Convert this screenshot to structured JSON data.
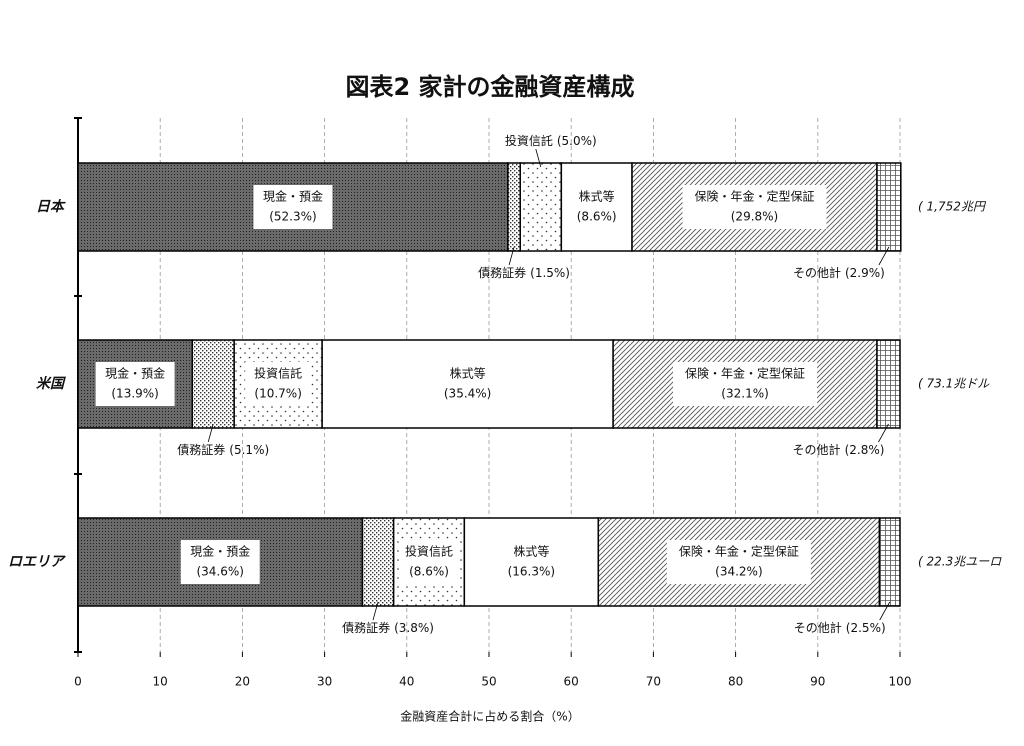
{
  "chart_data": {
    "type": "stacked-bar-horizontal",
    "title": "図表2 家計の金融資産構成",
    "x_label": "金融資産合計に占める割合（%）",
    "categories": [
      "日本",
      "米国",
      "ロエリア"
    ],
    "totals": [
      "( 1,752兆円",
      "( 73.1兆ドル",
      "( 22.3兆ユーロ"
    ],
    "xlim": [
      0,
      100
    ],
    "xticks": [
      0,
      10,
      20,
      30,
      40,
      50,
      60,
      70,
      80,
      90,
      100
    ],
    "grid": true,
    "series": [
      {
        "name": "現金・預金",
        "color": "#6a6a6a",
        "values": [
          52.3,
          13.9,
          34.6
        ],
        "value_labels": [
          "(52.3%)",
          "(13.9%)",
          "(34.6%)"
        ]
      },
      {
        "name": "債務証券",
        "color": "#dddddd",
        "values": [
          1.5,
          5.1,
          3.8
        ],
        "value_labels": [
          "(1.5%)",
          "(5.1%)",
          "(3.8%)"
        ]
      },
      {
        "name": "投資信託",
        "color": "#f4f4f4",
        "values": [
          5.0,
          10.7,
          8.6
        ],
        "value_labels": [
          "(5.0%)",
          "(10.7%)",
          "(8.6%)"
        ]
      },
      {
        "name": "株式等",
        "color": "#ffffff",
        "values": [
          8.6,
          35.4,
          16.3
        ],
        "value_labels": [
          "(8.6%)",
          "(35.4%)",
          "(16.3%)"
        ]
      },
      {
        "name": "保険・年金・定型保証",
        "color": "#cccccc",
        "values": [
          29.8,
          32.1,
          34.2
        ],
        "value_labels": [
          "(29.8%)",
          "(32.1%)",
          "(34.2%)"
        ]
      },
      {
        "name": "その他計",
        "color": "#e6e6e6",
        "values": [
          2.9,
          2.8,
          2.5
        ],
        "value_labels": [
          "(2.9%)",
          "(2.8%)",
          "(2.5%)"
        ]
      }
    ]
  }
}
